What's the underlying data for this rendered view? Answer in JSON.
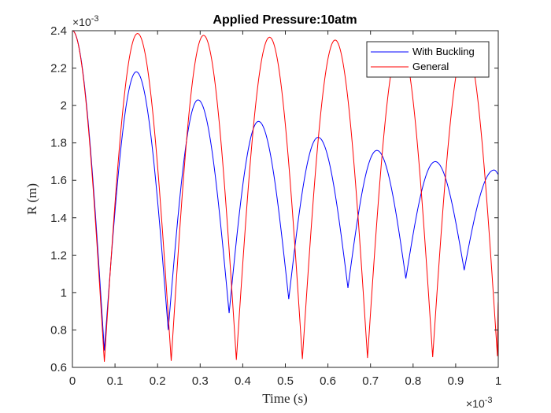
{
  "chart_data": {
    "type": "line",
    "title": "Applied Pressure:10atm",
    "xlabel": "Time (s)",
    "ylabel": "R  (m)",
    "x_multiplier": "×10",
    "x_exponent": "-3",
    "y_multiplier": "×10",
    "y_exponent": "-3",
    "xlim": [
      0,
      1
    ],
    "ylim": [
      0.6,
      2.4
    ],
    "x_ticks": [
      "0",
      "0.1",
      "0.2",
      "0.3",
      "0.4",
      "0.5",
      "0.6",
      "0.7",
      "0.8",
      "0.9",
      "1"
    ],
    "y_ticks": [
      "0.6",
      "0.8",
      "1",
      "1.2",
      "1.4",
      "1.6",
      "1.8",
      "2",
      "2.2",
      "2.4"
    ],
    "grid": false,
    "legend_position": "top-right",
    "series": [
      {
        "name": "With Buckling",
        "color": "#0000ff",
        "extrema": [
          [
            0.0,
            2.4
          ],
          [
            0.075,
            0.69
          ],
          [
            0.15,
            2.18
          ],
          [
            0.225,
            0.8
          ],
          [
            0.295,
            2.03
          ],
          [
            0.368,
            0.89
          ],
          [
            0.437,
            1.915
          ],
          [
            0.508,
            0.965
          ],
          [
            0.577,
            1.83
          ],
          [
            0.647,
            1.025
          ],
          [
            0.715,
            1.76
          ],
          [
            0.783,
            1.075
          ],
          [
            0.852,
            1.7
          ],
          [
            0.92,
            1.12
          ],
          [
            0.99,
            1.655
          ],
          [
            1.0,
            1.63
          ]
        ]
      },
      {
        "name": "General",
        "color": "#ff0000",
        "extrema": [
          [
            0.0,
            2.4
          ],
          [
            0.075,
            0.63
          ],
          [
            0.153,
            2.385
          ],
          [
            0.232,
            0.635
          ],
          [
            0.308,
            2.375
          ],
          [
            0.385,
            0.64
          ],
          [
            0.463,
            2.365
          ],
          [
            0.54,
            0.645
          ],
          [
            0.617,
            2.35
          ],
          [
            0.693,
            0.65
          ],
          [
            0.77,
            2.34
          ],
          [
            0.846,
            0.655
          ],
          [
            0.923,
            2.33
          ],
          [
            0.998,
            0.66
          ],
          [
            1.0,
            0.95
          ]
        ]
      }
    ]
  }
}
